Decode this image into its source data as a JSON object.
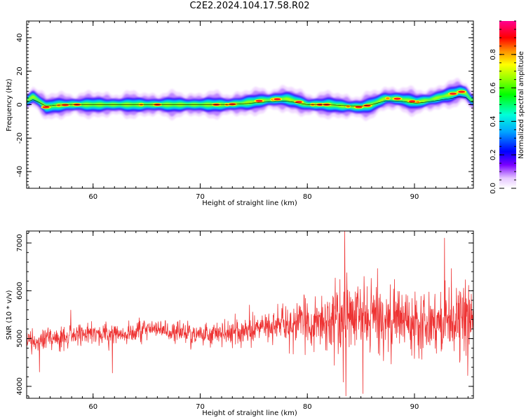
{
  "title": "C2E2.2024.104.17.58.R02",
  "chart_data": [
    {
      "type": "heatmap",
      "xlabel": "Height of straight line (km)",
      "ylabel": "Frequency (Hz)",
      "xlim": [
        53.8,
        95.5
      ],
      "ylim": [
        -50,
        50
      ],
      "x_ticks": [
        60,
        70,
        80,
        90
      ],
      "y_ticks": [
        -40,
        -20,
        0,
        20,
        40
      ],
      "grid": false,
      "colorbar": {
        "label": "Normalized spectral amplitude",
        "range": [
          0.0,
          1.0
        ],
        "ticks": [
          0.0,
          0.2,
          0.4,
          0.6,
          0.8
        ]
      },
      "ridge": {
        "x": [
          53.8,
          54.4,
          55.0,
          55.6,
          56.5,
          58,
          62,
          66,
          70,
          72.5,
          74,
          75.5,
          77,
          78,
          79,
          80,
          82,
          83.5,
          85,
          86,
          87.3,
          88.5,
          90.2,
          91.5,
          92.7,
          93.6,
          94.2,
          94.8,
          95.3
        ],
        "y": [
          2,
          5,
          2,
          -1.5,
          -0.5,
          0,
          0,
          0,
          0,
          0,
          0.8,
          2.2,
          3.2,
          3.5,
          2,
          0,
          0,
          -1,
          -1.5,
          0,
          3.8,
          3.5,
          1.5,
          3,
          5,
          6.5,
          8,
          7,
          2.5
        ]
      }
    },
    {
      "type": "line",
      "xlabel": "Height of straight line (km)",
      "ylabel": "SNR (10 * v/v)",
      "xlim": [
        53.8,
        95.5
      ],
      "ylim": [
        3750,
        7250
      ],
      "x_ticks": [
        60,
        70,
        80,
        90
      ],
      "y_ticks": [
        4000,
        5000,
        6000,
        7000
      ],
      "grid": false,
      "series": [
        {
          "color": "#ee3333",
          "x_range": [
            53.8,
            95.5
          ],
          "trend_x": [
            53.8,
            58,
            62,
            66,
            70,
            74,
            76,
            78,
            80,
            82,
            84,
            86,
            88,
            90,
            92,
            94,
            95.5
          ],
          "trend_y": [
            4900,
            5050,
            5100,
            5180,
            5100,
            5150,
            5250,
            5280,
            5350,
            5400,
            5450,
            5450,
            5400,
            5400,
            5380,
            5450,
            5400
          ],
          "noise_x": [
            53.8,
            60,
            70,
            76,
            79,
            82,
            84,
            88,
            92,
            95.5
          ],
          "noise_amp": [
            180,
            180,
            200,
            230,
            320,
            550,
            600,
            520,
            500,
            550
          ],
          "notable_points": [
            {
              "x": 83.5,
              "y": 7250
            },
            {
              "x": 83.6,
              "y": 3800
            },
            {
              "x": 85.2,
              "y": 3850
            },
            {
              "x": 92.8,
              "y": 7100
            },
            {
              "x": 55.0,
              "y": 4300
            },
            {
              "x": 61.8,
              "y": 4280
            }
          ]
        }
      ]
    }
  ]
}
